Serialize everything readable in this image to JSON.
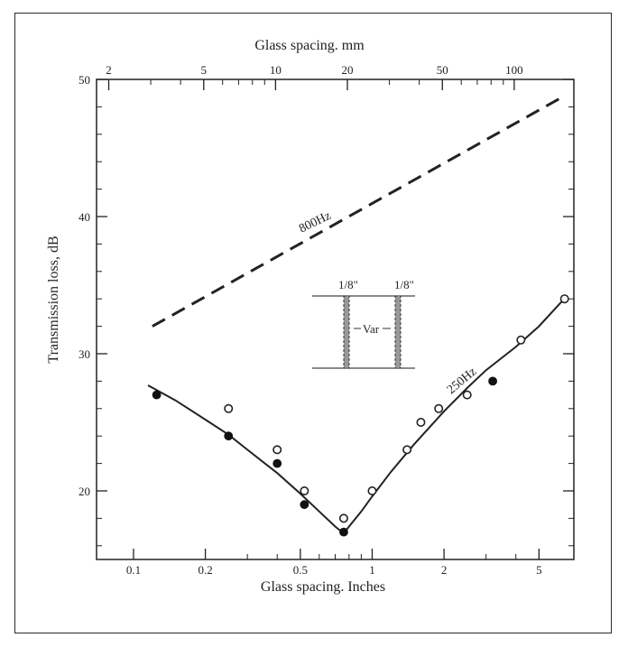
{
  "chart_data": {
    "type": "line",
    "xlabel": "Glass spacing. Inches",
    "x2label": "Glass spacing. mm",
    "ylabel": "Transmission loss, dB",
    "x_scale": "log",
    "xlim": [
      0.07,
      7
    ],
    "ylim": [
      15,
      50
    ],
    "x_ticks_major": [
      0.1,
      0.2,
      0.5,
      1,
      2,
      5
    ],
    "x_ticks_major_labels": [
      "0.1",
      "0.2",
      "0.5",
      "1",
      "2",
      "5"
    ],
    "x_ticks_minor": [
      0.3,
      0.4,
      0.6,
      0.7,
      0.8,
      0.9,
      3,
      4
    ],
    "x2_ticks_major_mm": [
      2,
      5,
      10,
      20,
      50,
      100
    ],
    "x2_ticks_major_labels": [
      "2",
      "5",
      "10",
      "20",
      "50",
      "100"
    ],
    "x2_ticks_minor_mm": [
      3,
      4,
      6,
      7,
      8,
      9,
      30,
      40,
      60,
      70,
      80,
      90
    ],
    "y_ticks_major": [
      20,
      30,
      40,
      50
    ],
    "y_ticks_major_labels": [
      "20",
      "30",
      "40",
      "50"
    ],
    "y_ticks_minor": [
      16,
      18,
      22,
      24,
      26,
      28,
      32,
      34,
      36,
      38,
      42,
      44,
      46,
      48
    ],
    "grid": false,
    "series": [
      {
        "name": "800Hz",
        "style": "dashed",
        "x": [
          0.12,
          6.4
        ],
        "y": [
          32,
          48.8
        ]
      },
      {
        "name": "250Hz",
        "style": "solid",
        "x": [
          0.115,
          0.15,
          0.2,
          0.25,
          0.3,
          0.4,
          0.5,
          0.6,
          0.7,
          0.76,
          0.8,
          0.9,
          1.0,
          1.2,
          1.5,
          2.0,
          2.5,
          3.0,
          4.0,
          5.0,
          6.3
        ],
        "y": [
          27.7,
          26.6,
          25.2,
          24.1,
          23.0,
          21.3,
          19.8,
          18.5,
          17.4,
          16.9,
          17.4,
          18.5,
          19.6,
          21.4,
          23.4,
          25.8,
          27.5,
          28.8,
          30.5,
          32.0,
          33.9
        ]
      }
    ],
    "points_open": {
      "x": [
        0.25,
        0.4,
        0.52,
        0.76,
        1.0,
        1.4,
        1.6,
        1.9,
        2.5,
        4.2,
        6.4
      ],
      "y": [
        26,
        23,
        20,
        18,
        20,
        23,
        25,
        26,
        27,
        31,
        34
      ]
    },
    "points_filled": {
      "x": [
        0.125,
        0.25,
        0.4,
        0.52,
        0.76,
        3.2
      ],
      "y": [
        27,
        24,
        22,
        19,
        17,
        28
      ]
    },
    "inset": {
      "left_thickness": "1/8\"",
      "right_thickness": "1/8\"",
      "spacing_label": "Var"
    }
  }
}
